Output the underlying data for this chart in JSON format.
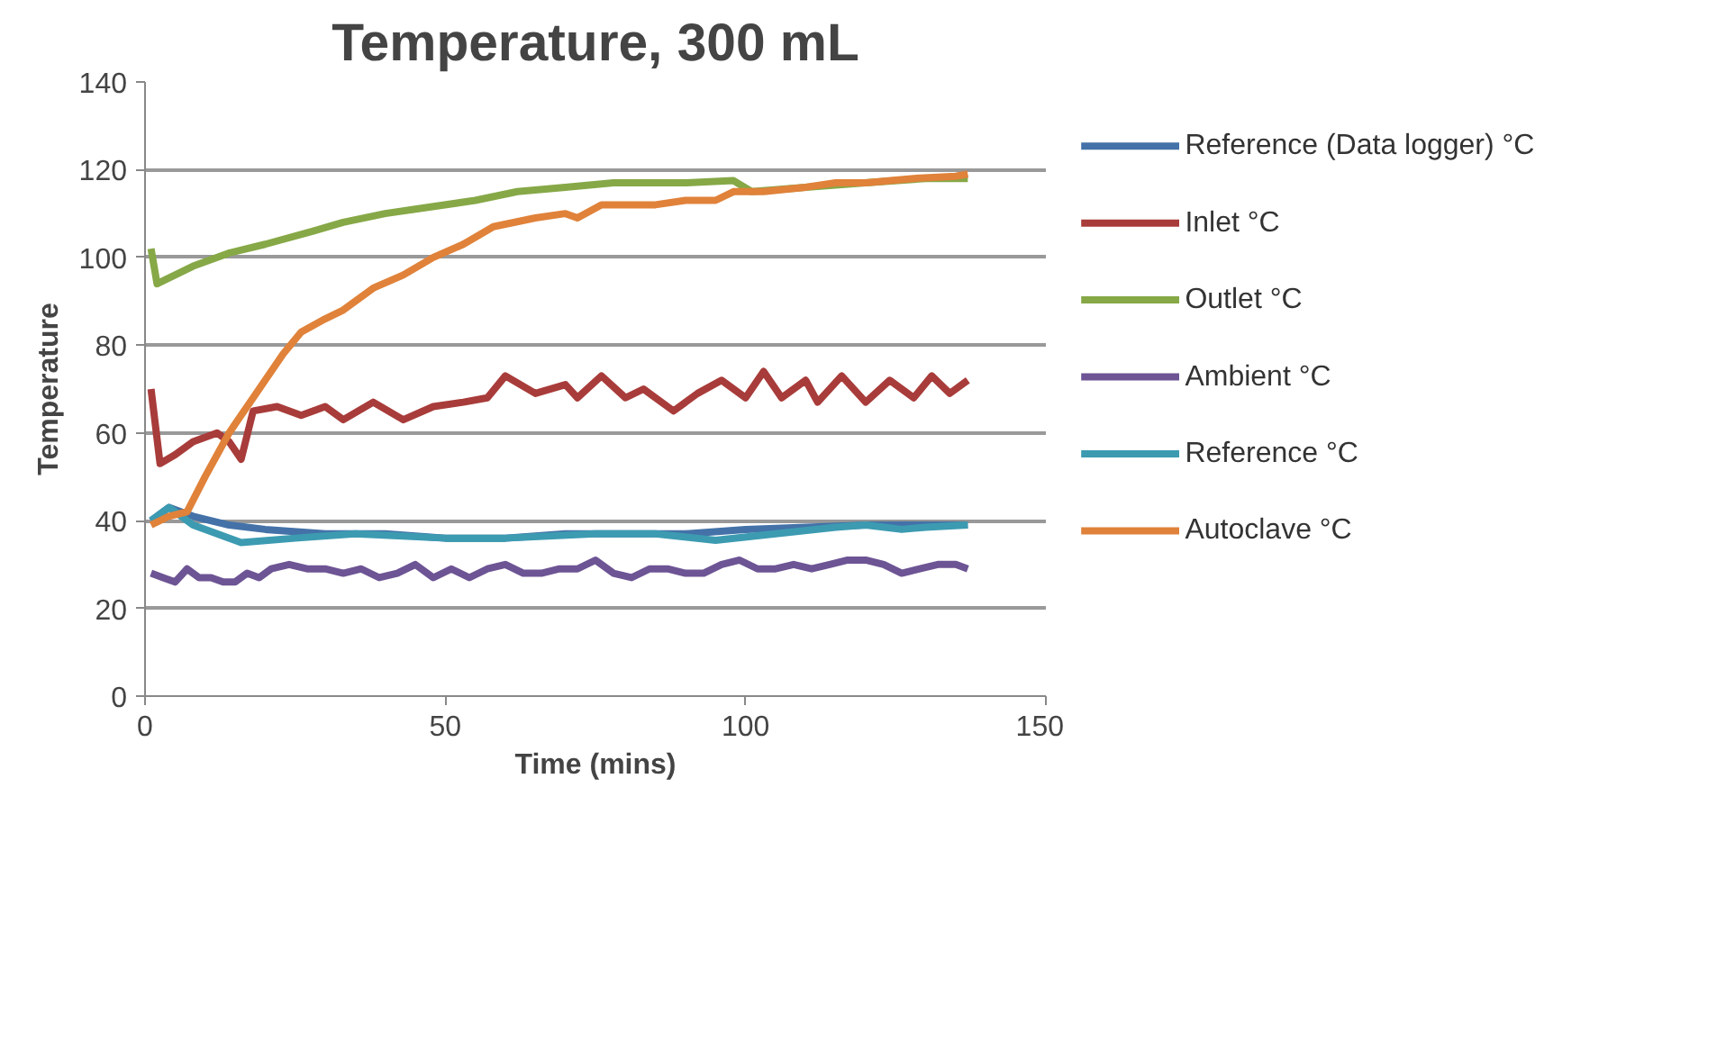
{
  "chart_data": {
    "type": "line",
    "title": "Temperature, 300 mL",
    "xlabel": "Time (mins)",
    "ylabel": "Temperature",
    "xlim": [
      0,
      150
    ],
    "xticks": [
      0,
      50,
      100,
      150
    ],
    "ylim": [
      0,
      140
    ],
    "yticks": [
      0,
      20,
      40,
      60,
      80,
      100,
      120,
      140
    ],
    "grid": "y",
    "legend": "right",
    "marker": "none",
    "line_style": "solid",
    "series": [
      {
        "name": "Reference (Data logger) °C",
        "color": "#4472a8",
        "x": [
          1,
          4,
          8,
          14,
          20,
          30,
          40,
          50,
          60,
          70,
          80,
          90,
          100,
          110,
          120,
          130,
          137
        ],
        "values": [
          40,
          43,
          41,
          39,
          38,
          37,
          37,
          36,
          36,
          37,
          37,
          37,
          38,
          38.5,
          39,
          39,
          39
        ]
      },
      {
        "name": "Inlet °C",
        "color": "#a83c3a",
        "x": [
          1,
          2.5,
          5,
          8,
          12,
          14,
          16,
          18,
          22,
          26,
          30,
          33,
          38,
          43,
          48,
          53,
          57,
          60,
          65,
          70,
          72,
          76,
          80,
          83,
          88,
          92,
          96,
          100,
          103,
          106,
          110,
          112,
          116,
          120,
          124,
          128,
          131,
          134,
          137
        ],
        "values": [
          70,
          53,
          55,
          58,
          60,
          58,
          54,
          65,
          66,
          64,
          66,
          63,
          67,
          63,
          66,
          67,
          68,
          73,
          69,
          71,
          68,
          73,
          68,
          70,
          65,
          69,
          72,
          68,
          74,
          68,
          72,
          67,
          73,
          67,
          72,
          68,
          73,
          69,
          72
        ]
      },
      {
        "name": "Outlet °C",
        "color": "#86a847",
        "x": [
          1,
          2,
          5,
          8,
          14,
          20,
          28,
          33,
          40,
          45,
          55,
          62,
          70,
          78,
          90,
          98,
          101,
          110,
          120,
          130,
          137
        ],
        "values": [
          102,
          94,
          96,
          98,
          101,
          103,
          106,
          108,
          110,
          111,
          113,
          115,
          116,
          117,
          117,
          117.5,
          115,
          116,
          117,
          118,
          118
        ]
      },
      {
        "name": "Ambient °C",
        "color": "#6d5494",
        "x": [
          1,
          3,
          5,
          7,
          9,
          11,
          13,
          15,
          17,
          19,
          21,
          24,
          27,
          30,
          33,
          36,
          39,
          42,
          45,
          48,
          51,
          54,
          57,
          60,
          63,
          66,
          69,
          72,
          75,
          78,
          81,
          84,
          87,
          90,
          93,
          96,
          99,
          102,
          105,
          108,
          111,
          114,
          117,
          120,
          123,
          126,
          129,
          132,
          135,
          137
        ],
        "values": [
          28,
          27,
          26,
          29,
          27,
          27,
          26,
          26,
          28,
          27,
          29,
          30,
          29,
          29,
          28,
          29,
          27,
          28,
          30,
          27,
          29,
          27,
          29,
          30,
          28,
          28,
          29,
          29,
          31,
          28,
          27,
          29,
          29,
          28,
          28,
          30,
          31,
          29,
          29,
          30,
          29,
          30,
          31,
          31,
          30,
          28,
          29,
          30,
          30,
          29
        ]
      },
      {
        "name": "Reference °C",
        "color": "#3c9bb1",
        "x": [
          1,
          4,
          8,
          16,
          25,
          35,
          50,
          60,
          75,
          85,
          95,
          105,
          115,
          120,
          126,
          130,
          137
        ],
        "values": [
          40,
          43,
          39,
          35,
          36,
          37,
          36,
          36,
          37,
          37,
          35.5,
          37,
          38.5,
          39,
          38,
          38.5,
          39
        ]
      },
      {
        "name": "Autoclave °C",
        "color": "#e0823a",
        "x": [
          1,
          4,
          7,
          10,
          14,
          19,
          23,
          26,
          30,
          33,
          38,
          43,
          48,
          53,
          58,
          65,
          70,
          72,
          76,
          85,
          90,
          95,
          98,
          103,
          110,
          115,
          120,
          128,
          135,
          137
        ],
        "values": [
          39,
          41,
          42,
          50,
          60,
          70,
          78,
          83,
          86,
          88,
          93,
          96,
          100,
          103,
          107,
          109,
          110,
          109,
          112,
          112,
          113,
          113,
          115,
          115,
          116,
          117,
          117,
          118,
          118.5,
          119
        ]
      }
    ]
  }
}
